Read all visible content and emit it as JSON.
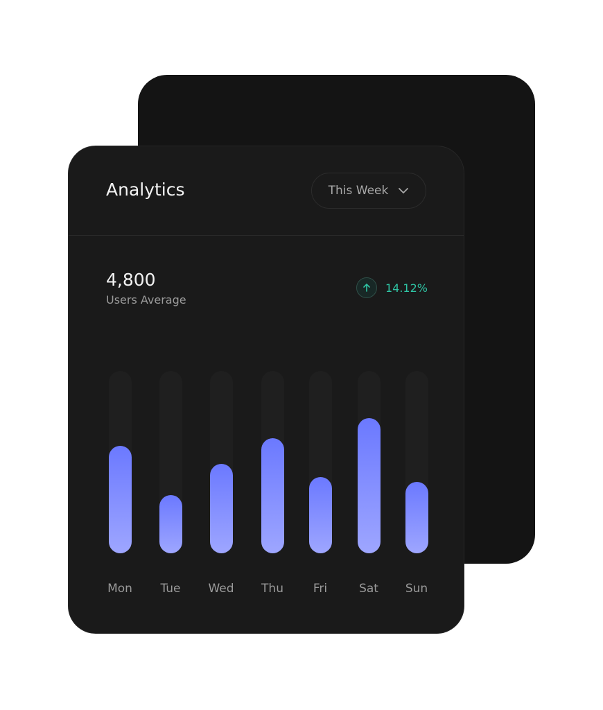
{
  "header": {
    "title": "Analytics",
    "period": "This Week"
  },
  "stats": {
    "value": "4,800",
    "label": "Users Average",
    "change": "14.12%",
    "change_color": "#2fc4a4"
  },
  "chart_data": {
    "type": "bar",
    "categories": [
      "Mon",
      "Tue",
      "Wed",
      "Thu",
      "Fri",
      "Sat",
      "Sun"
    ],
    "values": [
      59,
      32,
      49,
      63,
      42,
      74,
      39
    ],
    "value_units": "percent of track",
    "ylim": [
      0,
      100
    ],
    "grid": false,
    "bar_color": "#7a86ff"
  }
}
